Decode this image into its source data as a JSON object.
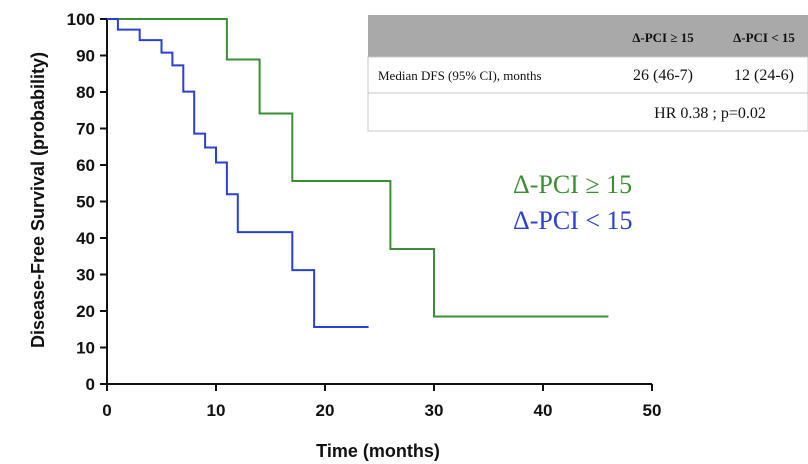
{
  "chart_data": {
    "type": "line",
    "step": true,
    "xlabel": "Time (months)",
    "ylabel": "Disease-Free Survival (probability)",
    "xlim": [
      0,
      50
    ],
    "ylim": [
      0,
      100
    ],
    "xticks": [
      "0",
      "10",
      "20",
      "30",
      "40",
      "50"
    ],
    "yticks": [
      "0",
      "10",
      "20",
      "30",
      "40",
      "50",
      "60",
      "70",
      "80",
      "90",
      "100"
    ],
    "grid": false,
    "series": [
      {
        "name": "Δ-PCI ≥ 15",
        "color": "#3a8f32",
        "x": [
          0,
          11,
          11,
          14,
          14,
          17,
          17,
          26,
          26,
          30,
          30,
          46
        ],
        "y": [
          100,
          100,
          88.9,
          88.9,
          74.1,
          74.1,
          55.6,
          55.6,
          37.0,
          37.0,
          18.5,
          18.5
        ]
      },
      {
        "name": "Δ-PCI < 15",
        "color": "#2a3fd6",
        "x": [
          0,
          1,
          1,
          3,
          3,
          5,
          5,
          6,
          6,
          7,
          7,
          8,
          8,
          9,
          9,
          10,
          10,
          11,
          11,
          12,
          12,
          17,
          17,
          19,
          19,
          24
        ],
        "y": [
          100,
          100,
          97.1,
          97.1,
          94.2,
          94.2,
          90.8,
          90.8,
          87.3,
          87.3,
          80.1,
          80.1,
          68.6,
          68.6,
          64.8,
          64.8,
          60.7,
          60.7,
          52.0,
          52.0,
          41.6,
          41.6,
          31.2,
          31.2,
          15.6,
          15.6
        ]
      }
    ],
    "legend": {
      "placement": "middle-right",
      "entries": [
        "Δ-PCI ≥ 15",
        "Δ-PCI < 15"
      ]
    },
    "table": {
      "headers": [
        "",
        "Δ-PCI ≥ 15",
        "Δ-PCI < 15"
      ],
      "rows": [
        [
          "Median DFS (95% CI), months",
          "26 (46-7)",
          "12 (24-6)"
        ]
      ],
      "footer": "HR 0.38 ; p=0.02"
    }
  }
}
